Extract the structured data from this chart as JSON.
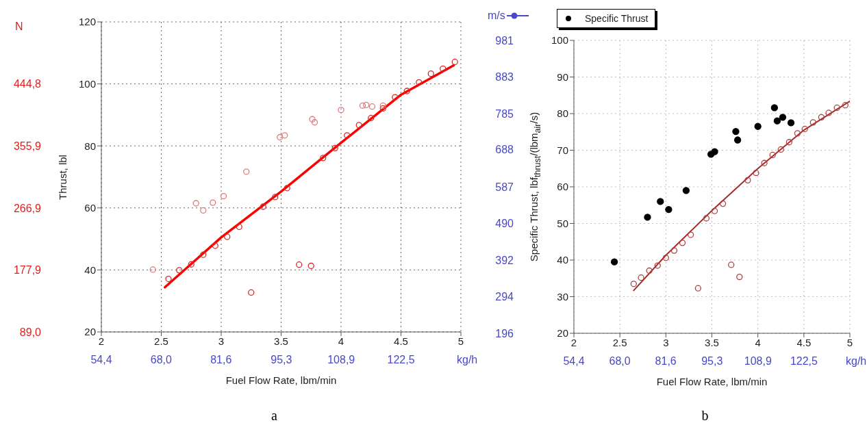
{
  "chart_data": [
    {
      "type": "scatter",
      "ylabel": "Thrust, lbl",
      "xlabel": "Fuel Flow Rate, lbm/min",
      "y2label": "N",
      "x2label": "kg/h",
      "annotations": [
        "a"
      ],
      "xlim": [
        2,
        5
      ],
      "xticks": [
        2,
        2.5,
        3,
        3.5,
        4,
        4.5,
        5
      ],
      "ylim": [
        20,
        120
      ],
      "yticks": [
        20,
        40,
        60,
        80,
        100,
        120
      ],
      "y2lim": [
        89.0,
        533.8
      ],
      "y2ticks": [
        {
          "value": 89.0,
          "label": "89,0"
        },
        {
          "value": 177.9,
          "label": "177,9"
        },
        {
          "value": 266.9,
          "label": "266,9"
        },
        {
          "value": 355.9,
          "label": "355,9"
        },
        {
          "value": 444.8,
          "label": "444,8"
        }
      ],
      "x2lim": [
        54.4,
        136.1
      ],
      "x2ticks": [
        {
          "value": 54.4,
          "label": "54,4"
        },
        {
          "value": 68.0,
          "label": "68,0"
        },
        {
          "value": 81.6,
          "label": "81,6"
        },
        {
          "value": 95.3,
          "label": "95,3"
        },
        {
          "value": 108.9,
          "label": "108,9"
        },
        {
          "value": 122.5,
          "label": "122,5"
        }
      ],
      "grid": true,
      "line_style": "solid",
      "series": [
        {
          "type": "line",
          "marker": "none",
          "color": "#ff0000",
          "x": [
            2.53,
            3.0,
            3.5,
            4.0,
            4.5,
            4.94
          ],
          "values": [
            34.4,
            50.5,
            65.3,
            81.0,
            96.5,
            106.0
          ]
        },
        {
          "type": "scatter",
          "marker": "circle",
          "color": "#d42a2a",
          "x": [
            2.56,
            2.65,
            2.75,
            2.85,
            2.95,
            3.05,
            3.15,
            3.25,
            3.35,
            3.45,
            3.55,
            3.65,
            3.75,
            3.85,
            3.95,
            4.05,
            4.15,
            4.25,
            4.35,
            4.45,
            4.55,
            4.65,
            4.75,
            4.85,
            4.95
          ],
          "values": [
            37.1,
            39.9,
            41.8,
            44.9,
            47.8,
            50.7,
            53.9,
            32.7,
            60.4,
            63.5,
            66.4,
            41.7,
            41.3,
            76.1,
            79.3,
            83.4,
            86.7,
            89.0,
            92.1,
            95.7,
            97.7,
            100.5,
            103.3,
            104.9,
            107.1
          ]
        },
        {
          "type": "scatter",
          "marker": "circle",
          "color": "#e07a7a",
          "x": [
            2.43,
            2.79,
            2.85,
            2.93,
            3.02,
            3.21,
            3.49,
            3.53,
            3.76,
            3.78,
            4.0,
            4.18,
            4.21,
            4.26,
            4.35
          ],
          "values": [
            40.1,
            61.5,
            59.2,
            61.7,
            63.8,
            71.7,
            82.8,
            83.4,
            88.6,
            87.6,
            91.6,
            93.0,
            93.2,
            92.7,
            93.0
          ]
        }
      ]
    },
    {
      "type": "scatter",
      "ylabel": "Specific Thrust, lbf$_{thrust}$/(lbm$_{air}$/s)",
      "xlabel": "Fuel Flow Rate, lbm/min",
      "y2label": "m/s",
      "x2label": "kg/h",
      "annotations": [
        "b"
      ],
      "xlim": [
        2,
        5
      ],
      "xticks": [
        2,
        2.5,
        3,
        3.5,
        4,
        4.5,
        5
      ],
      "ylim": [
        20,
        100
      ],
      "yticks": [
        20,
        30,
        40,
        50,
        60,
        70,
        80,
        90,
        100
      ],
      "y2lim": [
        196,
        981
      ],
      "y2ticks": [
        196,
        294,
        392,
        490,
        587,
        688,
        785,
        883,
        981
      ],
      "x2lim": [
        54.4,
        136.1
      ],
      "x2ticks": [
        {
          "value": 54.4,
          "label": "54,4"
        },
        {
          "value": 68.0,
          "label": "68,0"
        },
        {
          "value": 81.6,
          "label": "81,6"
        },
        {
          "value": 95.3,
          "label": "95,3"
        },
        {
          "value": 108.9,
          "label": "108,9"
        },
        {
          "value": 122.5,
          "label": "122,5"
        }
      ],
      "grid": true,
      "legend": "top",
      "line_style": "solid",
      "series": [
        {
          "type": "line",
          "marker": "none",
          "color": "#a52a2a",
          "x": [
            2.65,
            3.0,
            3.5,
            4.0,
            4.5,
            5.0
          ],
          "values": [
            31.7,
            41.3,
            53.5,
            65.0,
            75.5,
            83.4
          ]
        },
        {
          "type": "scatter",
          "marker": "circle",
          "color": "#b04040",
          "x": [
            2.65,
            2.73,
            2.82,
            2.91,
            3.0,
            3.09,
            3.18,
            3.27,
            3.35,
            3.44,
            3.53,
            3.62,
            3.71,
            3.8,
            3.89,
            3.98,
            4.07,
            4.16,
            4.25,
            4.34,
            4.43,
            4.51,
            4.6,
            4.69,
            4.77,
            4.86,
            4.95
          ],
          "values": [
            33.5,
            35.2,
            37.1,
            38.5,
            40.6,
            42.6,
            44.7,
            46.9,
            32.3,
            51.4,
            53.4,
            55.4,
            38.7,
            35.4,
            61.8,
            63.8,
            66.5,
            68.7,
            70.2,
            72.2,
            74.6,
            75.8,
            77.6,
            79.0,
            80.2,
            81.6,
            82.3
          ]
        },
        {
          "type": "scatter",
          "marker": "circle",
          "name": "Specific Thrust",
          "color": "#000000",
          "x": [
            2.44,
            2.8,
            2.94,
            3.03,
            3.22,
            3.49,
            3.53,
            3.76,
            3.78,
            4.0,
            4.18,
            4.21,
            4.27,
            4.36
          ],
          "values": [
            39.5,
            51.7,
            56.0,
            53.8,
            59.0,
            68.9,
            69.6,
            75.1,
            72.8,
            76.5,
            81.6,
            78.0,
            79.0,
            77.5
          ]
        }
      ]
    }
  ]
}
